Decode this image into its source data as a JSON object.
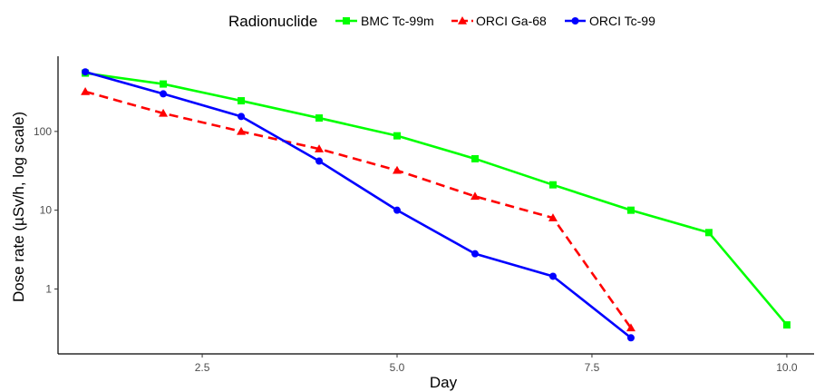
{
  "chart_data": {
    "type": "line",
    "xlabel": "Day",
    "ylabel": "Dose rate (µSv/h, log scale)",
    "xlim": [
      0.65,
      10.35
    ],
    "ylim": [
      0.15,
      900
    ],
    "y_scale": "log",
    "x_ticks": [
      2.5,
      5.0,
      7.5,
      10.0
    ],
    "x_tick_labels": [
      "2.5",
      "5.0",
      "7.5",
      "10.0"
    ],
    "y_ticks": [
      1,
      10,
      100
    ],
    "y_tick_labels": [
      "1",
      "10",
      "100"
    ],
    "grid": false,
    "legend": {
      "title": "Radionuclide",
      "position": "top"
    },
    "series": [
      {
        "name": "BMC Tc-99m",
        "color": "#00ff00",
        "marker": "square",
        "line_style": "solid",
        "x": [
          1,
          2,
          3,
          4,
          5,
          6,
          7,
          8,
          9,
          10
        ],
        "y": [
          550,
          400,
          245,
          148,
          88,
          45,
          21,
          10,
          5.2,
          0.35
        ]
      },
      {
        "name": "ORCI Ga-68",
        "color": "#ff0000",
        "marker": "triangle",
        "line_style": "dashed",
        "x": [
          1,
          2,
          3,
          4,
          5,
          6,
          7,
          8
        ],
        "y": [
          320,
          170,
          100,
          60,
          32,
          15,
          8,
          0.32
        ]
      },
      {
        "name": "ORCI Tc-99",
        "color": "#0000ff",
        "marker": "circle",
        "line_style": "solid",
        "x": [
          1,
          2,
          3,
          4,
          5,
          6,
          7,
          8
        ],
        "y": [
          570,
          300,
          155,
          42,
          10,
          2.8,
          1.45,
          0.24
        ]
      }
    ]
  }
}
